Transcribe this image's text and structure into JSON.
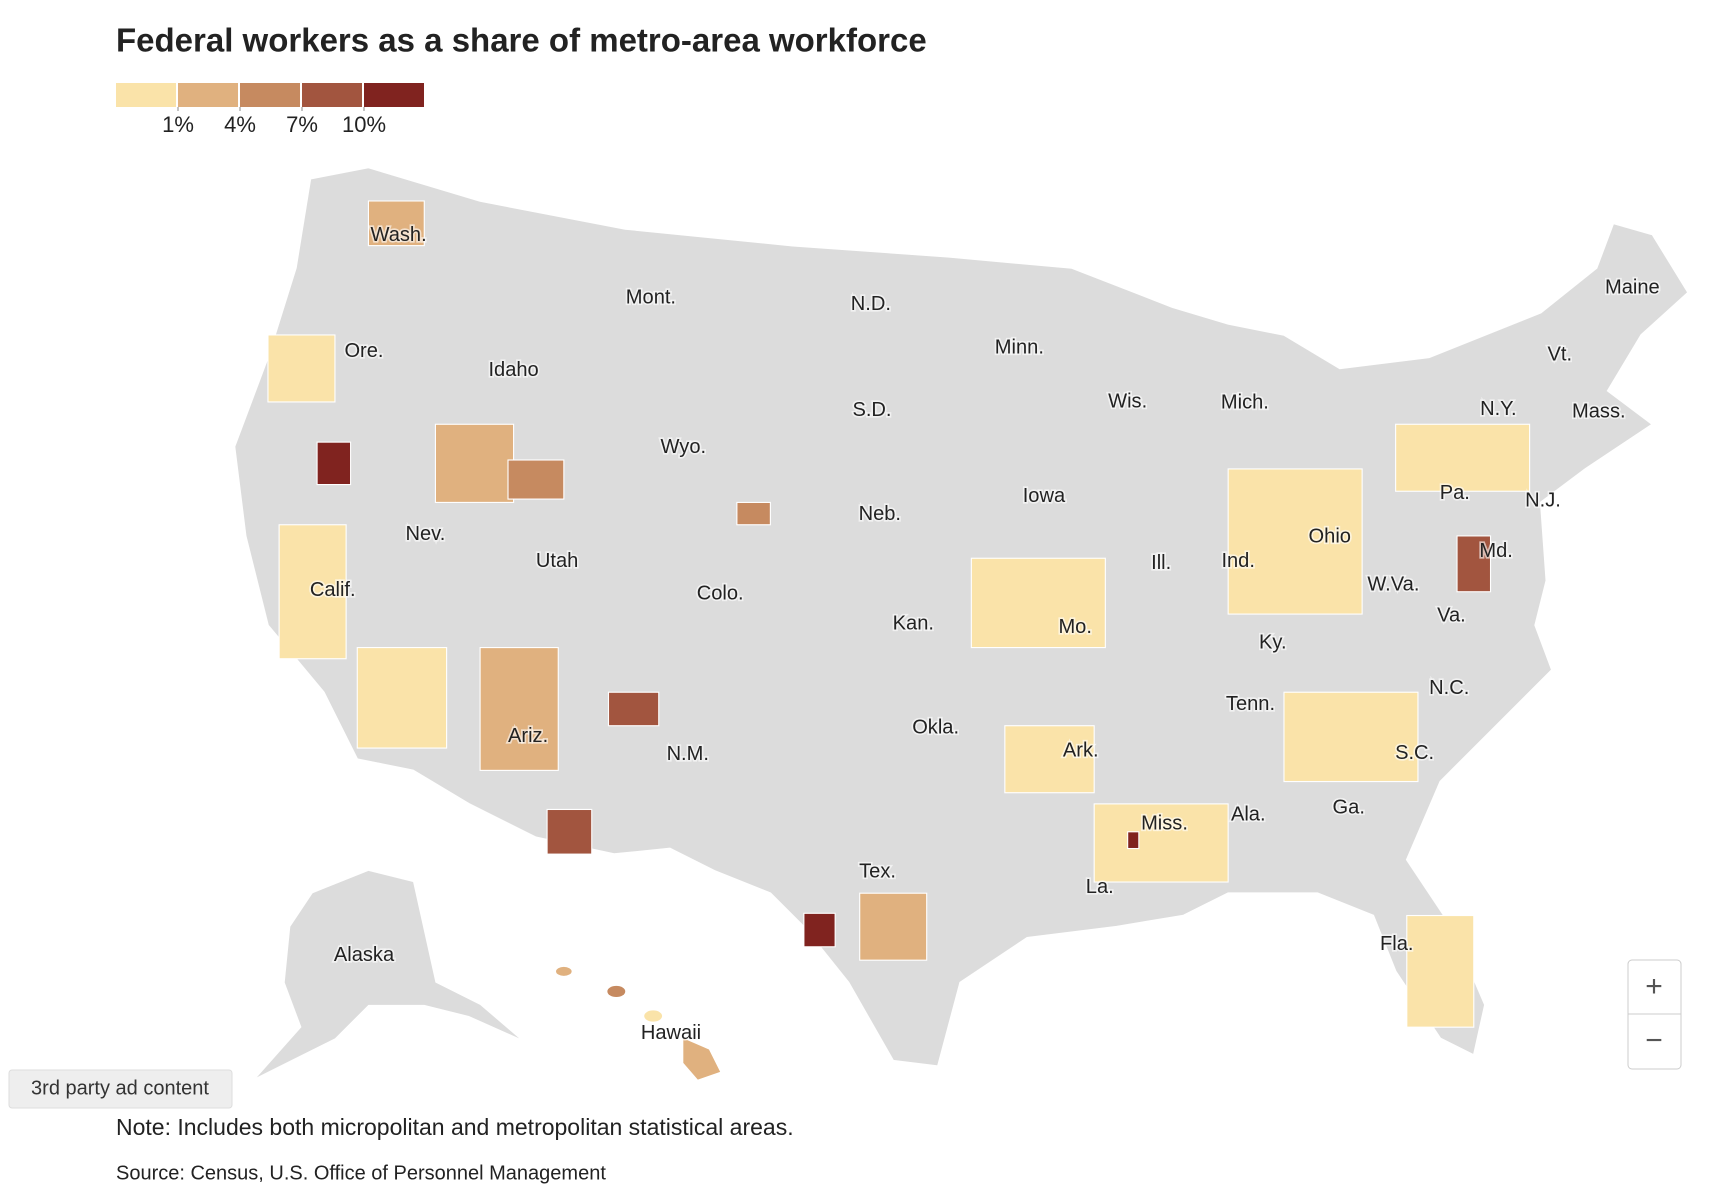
{
  "title": "Federal workers as a share of metro-area workforce",
  "legend": {
    "colors": [
      "#fae3a9",
      "#e0b17f",
      "#c68a60",
      "#a2553f",
      "#80231f"
    ],
    "ticks": [
      {
        "value": 1,
        "label": "1%"
      },
      {
        "value": 4,
        "label": "4%"
      },
      {
        "value": 7,
        "label": "7%"
      },
      {
        "value": 10,
        "label": "10%"
      }
    ]
  },
  "map": {
    "no_data_color": "#dcdcdc",
    "labels": [
      "Wash.",
      "Mont.",
      "N.D.",
      "Minn.",
      "Maine",
      "Ore.",
      "Idaho",
      "Wis.",
      "Mich.",
      "Vt.",
      "N.Y.",
      "Mass.",
      "S.D.",
      "Wyo.",
      "Iowa",
      "Pa.",
      "N.J.",
      "Neb.",
      "Nev.",
      "Ohio",
      "Utah",
      "Ill.",
      "Ind.",
      "Md.",
      "W.Va.",
      "Calif.",
      "Colo.",
      "Kan.",
      "Mo.",
      "Va.",
      "Ky.",
      "Tenn.",
      "N.C.",
      "Okla.",
      "Ariz.",
      "N.M.",
      "Ark.",
      "S.C.",
      "Ga.",
      "Ala.",
      "Miss.",
      "Tex.",
      "La.",
      "Fla.",
      "Alaska",
      "Hawaii"
    ]
  },
  "zoom": {
    "in": "+",
    "out": "−"
  },
  "ad_label": "3rd party ad content",
  "note": "Note: Includes both micropolitan and metropolitan statistical areas.",
  "source": "Source: Census, U.S. Office of Personnel Management"
}
